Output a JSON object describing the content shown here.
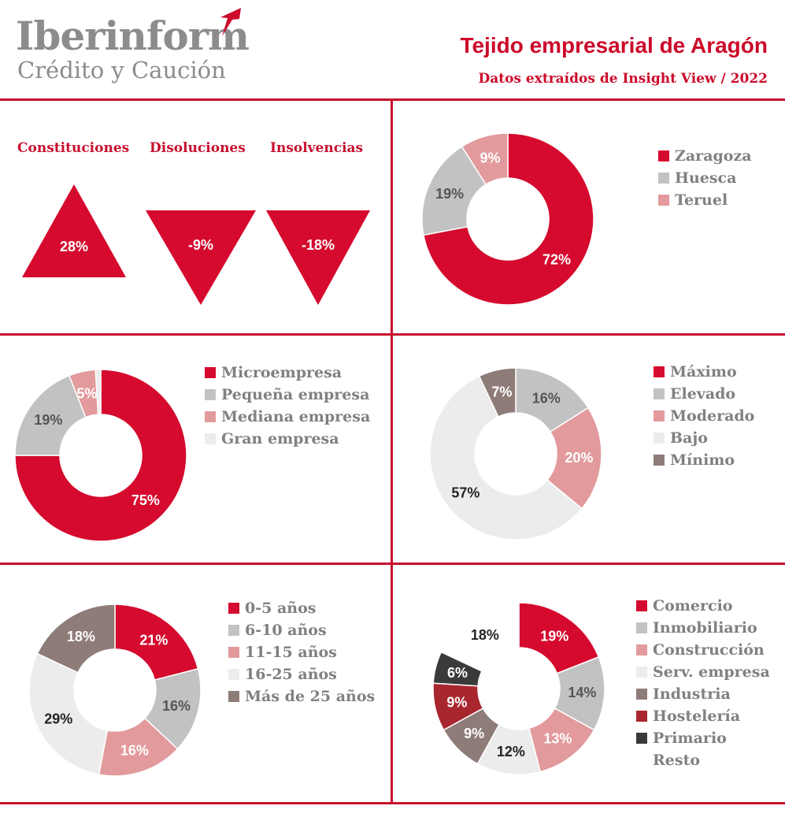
{
  "header": {
    "logo_name": "Iberinform",
    "logo_sub": "Crédito y Caución",
    "title": "Tejido empresarial de Aragón",
    "subtitle": "Datos extraídos de Insight View / 2022"
  },
  "colors": {
    "accent": "#c8102e",
    "red": "#d50a2e",
    "gray": "#c2c2c2",
    "pink": "#e29a9c",
    "light": "#ececec",
    "taupe": "#8e7c79",
    "darkred": "#a8262e",
    "dark": "#3a3a3a"
  },
  "chart_data": [
    {
      "type": "indicators",
      "categories": [
        "Constituciones",
        "Disoluciones",
        "Insolvencias"
      ],
      "values": [
        28,
        -9,
        -18
      ],
      "labels": [
        "28%",
        "-9%",
        "-18%"
      ]
    },
    {
      "type": "pie",
      "donut": true,
      "legend": [
        "Zaragoza",
        "Huesca",
        "Teruel"
      ],
      "values": [
        72,
        19,
        9
      ],
      "labels": [
        "72%",
        "19%",
        "9%"
      ],
      "colors": [
        "#d50a2e",
        "#c2c2c2",
        "#e29a9c"
      ]
    },
    {
      "type": "pie",
      "donut": true,
      "legend": [
        "Microempresa",
        "Pequeña empresa",
        "Mediana empresa",
        "Gran empresa"
      ],
      "values": [
        75,
        19,
        5,
        1
      ],
      "labels": [
        "75%",
        "19%",
        "5%",
        ""
      ],
      "colors": [
        "#d50a2e",
        "#c2c2c2",
        "#e29a9c",
        "#ececec"
      ]
    },
    {
      "type": "pie",
      "donut": true,
      "legend": [
        "Máximo",
        "Elevado",
        "Moderado",
        "Bajo",
        "Mínimo"
      ],
      "values": [
        0,
        16,
        20,
        57,
        7
      ],
      "labels": [
        "",
        "16%",
        "20%",
        "57%",
        "7%"
      ],
      "colors": [
        "#d50a2e",
        "#c2c2c2",
        "#e29a9c",
        "#ececec",
        "#8e7c79"
      ]
    },
    {
      "type": "pie",
      "donut": true,
      "legend": [
        "0-5 años",
        "6-10 años",
        "11-15 años",
        "16-25 años",
        "Más de 25 años"
      ],
      "values": [
        21,
        16,
        16,
        29,
        18
      ],
      "labels": [
        "21%",
        "16%",
        "16%",
        "29%",
        "18%"
      ],
      "colors": [
        "#d50a2e",
        "#c2c2c2",
        "#e29a9c",
        "#ececec",
        "#8e7c79"
      ]
    },
    {
      "type": "pie",
      "donut": true,
      "legend": [
        "Comercio",
        "Inmobiliario",
        "Construcción",
        "Serv. empresa",
        "Industria",
        "Hostelería",
        "Primario",
        "Resto"
      ],
      "values": [
        19,
        14,
        13,
        12,
        9,
        9,
        6,
        18
      ],
      "labels": [
        "19%",
        "14%",
        "13%",
        "12%",
        "9%",
        "9%",
        "6%",
        "18%"
      ],
      "colors": [
        "#d50a2e",
        "#c2c2c2",
        "#e29a9c",
        "#ececec",
        "#8e7c79",
        "#a8262e",
        "#3a3a3a",
        "#ffffff"
      ]
    }
  ]
}
